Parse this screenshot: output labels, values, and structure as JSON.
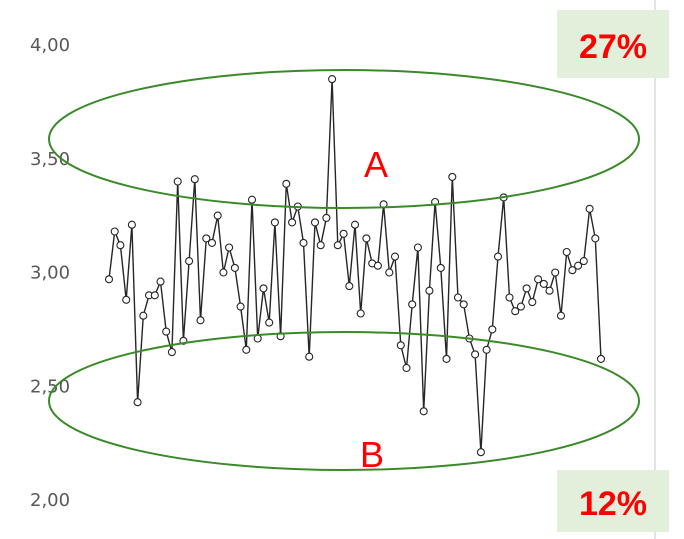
{
  "chart_data": {
    "type": "line",
    "title": "",
    "xlabel": "",
    "ylabel": "",
    "ylim": [
      2.0,
      4.0
    ],
    "yticks": [
      "4,00",
      "3,50",
      "3,00",
      "2,50",
      "2,00"
    ],
    "grid": false,
    "markers": "hollow-circle",
    "series": [
      {
        "values": [
          2.97,
          3.18,
          3.12,
          2.88,
          3.21,
          2.43,
          2.81,
          2.9,
          2.9,
          2.96,
          2.74,
          2.65,
          3.4,
          2.7,
          3.05,
          3.41,
          2.79,
          3.15,
          3.13,
          3.25,
          3.0,
          3.11,
          3.02,
          2.85,
          2.66,
          3.32,
          2.71,
          2.93,
          2.78,
          3.22,
          2.72,
          3.39,
          3.22,
          3.29,
          3.13,
          2.63,
          3.22,
          3.12,
          3.24,
          3.85,
          3.12,
          3.17,
          2.94,
          3.21,
          2.82,
          3.15,
          3.04,
          3.03,
          3.3,
          3.0,
          3.07,
          2.68,
          2.58,
          2.86,
          3.11,
          2.39,
          2.92,
          3.31,
          3.02,
          2.62,
          3.42,
          2.89,
          2.86,
          2.71,
          2.64,
          2.21,
          2.66,
          2.75,
          3.07,
          3.33,
          2.89,
          2.83,
          2.85,
          2.93,
          2.87,
          2.97,
          2.95,
          2.92,
          3.0,
          2.81,
          3.09,
          3.01,
          3.03,
          3.05,
          3.28,
          3.15,
          2.62
        ]
      }
    ]
  },
  "annotations": {
    "zone_a_label": "A",
    "zone_b_label": "B",
    "top_badge": "27%",
    "bottom_badge": "12%"
  },
  "colors": {
    "line": "#262626",
    "marker_stroke": "#262626",
    "ellipse": "#3a8a2a",
    "label": "#ff0000",
    "badge_bg": "#e2efda",
    "tick_text": "#595959"
  }
}
